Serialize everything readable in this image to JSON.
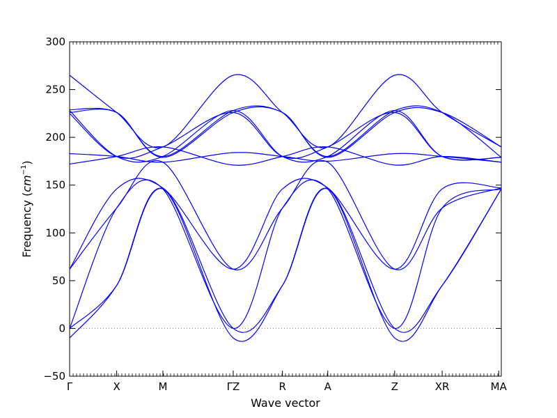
{
  "chart_data": {
    "type": "line",
    "title": "",
    "xlabel": "Wave vector",
    "ylabel": "Frequency (cm⁻¹)",
    "ylabel_text": "Frequency (",
    "ylabel_unit": "cm",
    "ylabel_exp": "−1",
    "ylabel_close": ")",
    "ylim": [
      -50,
      300
    ],
    "yticks": [
      -50,
      0,
      50,
      100,
      150,
      200,
      250,
      300
    ],
    "xlim": [
      0,
      1
    ],
    "high_symmetry_points": [
      {
        "label": "Γ",
        "x": 0.0
      },
      {
        "label": "X",
        "x": 0.109
      },
      {
        "label": "M",
        "x": 0.216
      },
      {
        "label": "ΓZ",
        "x": 0.379
      },
      {
        "label": "R",
        "x": 0.493
      },
      {
        "label": "A",
        "x": 0.598
      },
      {
        "label": "Z",
        "x": 0.753
      },
      {
        "label": "XR",
        "x": 0.863
      },
      {
        "label": "MA",
        "x": 0.994
      }
    ],
    "reference_line": {
      "y": 0,
      "style": "dotted",
      "color": "#808080"
    },
    "grid": false,
    "line_color": "#0000ff",
    "series": [
      {
        "x": [
          0.0,
          0.109,
          0.216,
          0.379,
          0.493,
          0.598,
          0.753,
          0.863,
          1.0
        ],
        "values": [
          265,
          226,
          190,
          265,
          226,
          190,
          265,
          226,
          190
        ]
      },
      {
        "x": [
          0.0,
          0.109,
          0.216,
          0.379,
          0.493,
          0.598,
          0.753,
          0.863,
          1.0
        ],
        "values": [
          229,
          226,
          180,
          228,
          226,
          180,
          228,
          226,
          179
        ]
      },
      {
        "x": [
          0.0,
          0.109,
          0.216,
          0.379,
          0.493,
          0.598,
          0.753,
          0.863,
          1.0
        ],
        "values": [
          228,
          180,
          180,
          228,
          180,
          180,
          228,
          180,
          179
        ]
      },
      {
        "x": [
          0.0,
          0.109,
          0.216,
          0.379,
          0.493,
          0.598,
          0.753,
          0.863,
          1.0
        ],
        "values": [
          226,
          226,
          179,
          226,
          226,
          179,
          226,
          226,
          190
        ]
      },
      {
        "x": [
          0.0,
          0.109,
          0.216,
          0.379,
          0.493,
          0.598,
          0.753,
          0.863,
          1.0
        ],
        "values": [
          225,
          180,
          190,
          226,
          180,
          190,
          226,
          180,
          179
        ]
      },
      {
        "x": [
          0.0,
          0.109,
          0.216,
          0.379,
          0.493,
          0.598,
          0.753,
          0.863,
          1.0
        ],
        "values": [
          183,
          180,
          174,
          184,
          180,
          175,
          183,
          180,
          174
        ]
      },
      {
        "x": [
          0.0,
          0.109,
          0.216,
          0.379,
          0.493,
          0.598,
          0.753,
          0.863,
          1.0
        ],
        "values": [
          172,
          180,
          190,
          171,
          180,
          190,
          171,
          180,
          174
        ]
      },
      {
        "x": [
          0.0,
          0.109,
          0.216,
          0.379,
          0.493,
          0.598,
          0.753,
          0.863,
          1.0
        ],
        "values": [
          62,
          146,
          147,
          62,
          146,
          147,
          62,
          146,
          147
        ]
      },
      {
        "x": [
          0.0,
          0.109,
          0.216,
          0.379,
          0.493,
          0.598,
          0.753,
          0.863,
          1.0
        ],
        "values": [
          62,
          126,
          174,
          62,
          126,
          174,
          62,
          126,
          147
        ]
      },
      {
        "x": [
          0.0,
          0.109,
          0.216,
          0.379,
          0.493,
          0.598,
          0.753,
          0.863,
          1.0
        ],
        "values": [
          0,
          126,
          146,
          0,
          126,
          146,
          0,
          126,
          146
        ]
      },
      {
        "x": [
          0.0,
          0.109,
          0.216,
          0.379,
          0.493,
          0.598,
          0.753,
          0.863,
          1.0
        ],
        "values": [
          0,
          45,
          146,
          0,
          45,
          146,
          0,
          45,
          146
        ]
      },
      {
        "x": [
          0.0,
          0.109,
          0.216,
          0.379,
          0.493,
          0.598,
          0.753,
          0.863,
          1.0
        ],
        "values": [
          -10,
          45,
          146,
          -10,
          45,
          146,
          -10,
          45,
          146
        ]
      }
    ]
  }
}
